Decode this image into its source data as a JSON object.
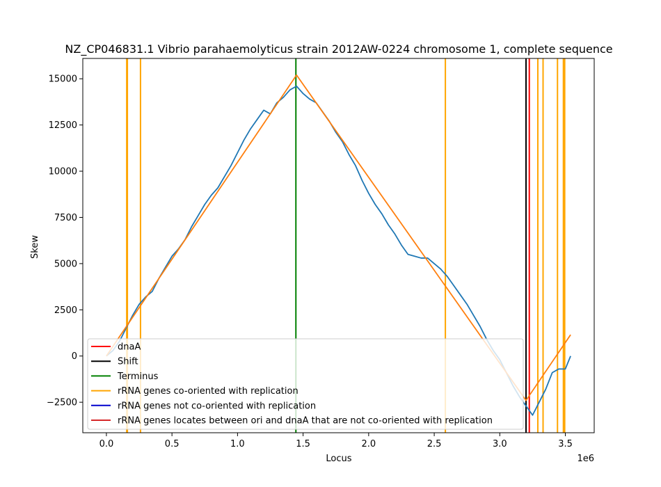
{
  "chart_data": {
    "type": "line",
    "title": "NZ_CP046831.1 Vibrio parahaemolyticus strain 2012AW-0224 chromosome 1, complete sequence",
    "xlabel": "Locus",
    "ylabel": "Skew",
    "x_offset_label": "1e6",
    "xlim": [
      -0.18,
      3.72
    ],
    "ylim": [
      -4150,
      16100
    ],
    "x_ticks": [
      0.0,
      0.5,
      1.0,
      1.5,
      2.0,
      2.5,
      3.0,
      3.5
    ],
    "x_tick_labels": [
      "0.0",
      "0.5",
      "1.0",
      "1.5",
      "2.0",
      "2.5",
      "3.0",
      "3.5"
    ],
    "y_ticks": [
      -2500,
      0,
      2500,
      5000,
      7500,
      10000,
      12500,
      15000
    ],
    "y_tick_labels": [
      "−2500",
      "0",
      "2500",
      "5000",
      "7500",
      "10000",
      "12500",
      "15000"
    ],
    "grid": false,
    "legend_position": "lower-left",
    "series": [
      {
        "name": "",
        "color": "#1f77b4",
        "x": [
          0.0,
          0.05,
          0.1,
          0.15,
          0.2,
          0.25,
          0.3,
          0.35,
          0.4,
          0.45,
          0.5,
          0.55,
          0.6,
          0.65,
          0.7,
          0.75,
          0.8,
          0.85,
          0.9,
          0.95,
          1.0,
          1.05,
          1.1,
          1.15,
          1.2,
          1.25,
          1.3,
          1.35,
          1.4,
          1.45,
          1.5,
          1.55,
          1.6,
          1.65,
          1.7,
          1.75,
          1.8,
          1.85,
          1.9,
          1.95,
          2.0,
          2.05,
          2.1,
          2.15,
          2.2,
          2.25,
          2.3,
          2.35,
          2.4,
          2.45,
          2.5,
          2.55,
          2.6,
          2.65,
          2.7,
          2.75,
          2.8,
          2.85,
          2.9,
          2.95,
          3.0,
          3.05,
          3.1,
          3.15,
          3.2,
          3.25,
          3.3,
          3.35,
          3.4,
          3.45,
          3.5,
          3.54
        ],
        "y": [
          0,
          300,
          800,
          1500,
          2200,
          2800,
          3200,
          3500,
          4200,
          4800,
          5400,
          5800,
          6300,
          7000,
          7600,
          8200,
          8700,
          9100,
          9700,
          10300,
          11000,
          11700,
          12300,
          12800,
          13300,
          13100,
          13700,
          14000,
          14400,
          14600,
          14200,
          13900,
          13700,
          13200,
          12700,
          12100,
          11600,
          10900,
          10300,
          9500,
          8800,
          8200,
          7700,
          7100,
          6600,
          6000,
          5500,
          5400,
          5300,
          5300,
          5000,
          4700,
          4300,
          3800,
          3300,
          2800,
          2200,
          1600,
          900,
          300,
          -200,
          -900,
          -1600,
          -2200,
          -2700,
          -3200,
          -2500,
          -1800,
          -900,
          -700,
          -700,
          0
        ]
      },
      {
        "name": "",
        "color": "#ff7f0e",
        "x": [
          0.0,
          1.45,
          3.2,
          3.54
        ],
        "y": [
          0,
          15200,
          -2400,
          1150
        ]
      }
    ],
    "vertical_lines": [
      {
        "x": 3.225,
        "color": "#ff0000",
        "legend": "dnaA"
      },
      {
        "x": 3.2,
        "color": "#000000",
        "legend": "Shift"
      },
      {
        "x": 1.445,
        "color": "#008000",
        "legend": "Terminus"
      },
      {
        "x": 0.155,
        "color": "#ffa500",
        "legend": "rRNA genes co-oriented with replication"
      },
      {
        "x": 0.16,
        "color": "#ffa500",
        "legend": ""
      },
      {
        "x": 0.26,
        "color": "#ffa500",
        "legend": ""
      },
      {
        "x": 2.585,
        "color": "#ffa500",
        "legend": ""
      },
      {
        "x": 3.29,
        "color": "#ffa500",
        "legend": ""
      },
      {
        "x": 3.33,
        "color": "#ffa500",
        "legend": ""
      },
      {
        "x": 3.44,
        "color": "#ffa500",
        "legend": ""
      },
      {
        "x": 3.485,
        "color": "#ffa500",
        "legend": ""
      },
      {
        "x": 3.495,
        "color": "#ffa500",
        "legend": ""
      }
    ],
    "legend": [
      {
        "label": "dnaA",
        "color": "#ff0000"
      },
      {
        "label": "Shift",
        "color": "#000000"
      },
      {
        "label": "Terminus",
        "color": "#008000"
      },
      {
        "label": "rRNA genes co-oriented with replication",
        "color": "#ffa500"
      },
      {
        "label": "rRNA genes not co-oriented with replication",
        "color": "#0000cd"
      },
      {
        "label": "rRNA genes locates between ori and dnaA that are not co-oriented with replication",
        "color": "#d62728"
      }
    ]
  }
}
